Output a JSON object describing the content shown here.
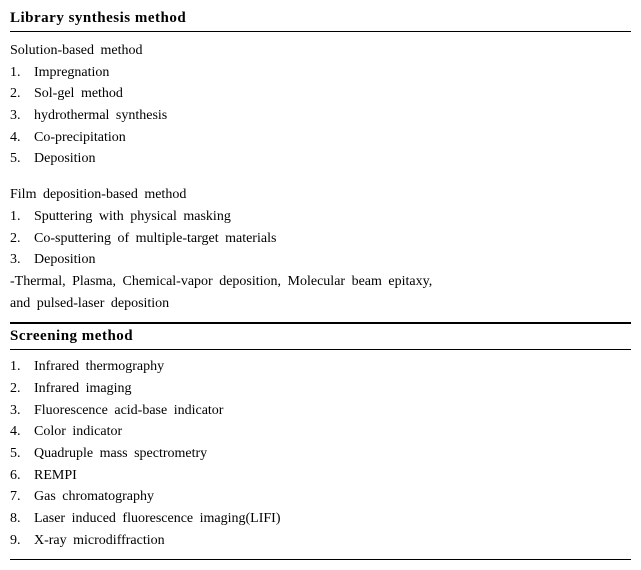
{
  "header1": "Library  synthesis method",
  "section1": {
    "subA_title": "Solution-based  method",
    "subA_items": [
      "Impregnation",
      "Sol-gel method",
      "hydrothermal synthesis",
      "Co-precipitation",
      "Deposition"
    ],
    "subB_title": "Film deposition-based  method",
    "subB_items": [
      "Sputtering  with  physical  masking",
      "Co-sputtering of multiple-target  materials",
      "Deposition"
    ],
    "note_line1": "-Thermal, Plasma, Chemical-vapor deposition, Molecular beam epitaxy,",
    "note_line2": "and pulsed-laser deposition"
  },
  "header2": "Screening method",
  "section2": {
    "items": [
      "Infrared  thermography",
      "Infrared  imaging",
      "Fluorescence  acid-base  indicator",
      "Color indicator",
      "Quadruple mass spectrometry",
      "REMPI",
      "Gas chromatography",
      "Laser induced fluorescence  imaging(LIFI)",
      "X-ray  microdiffraction"
    ]
  }
}
